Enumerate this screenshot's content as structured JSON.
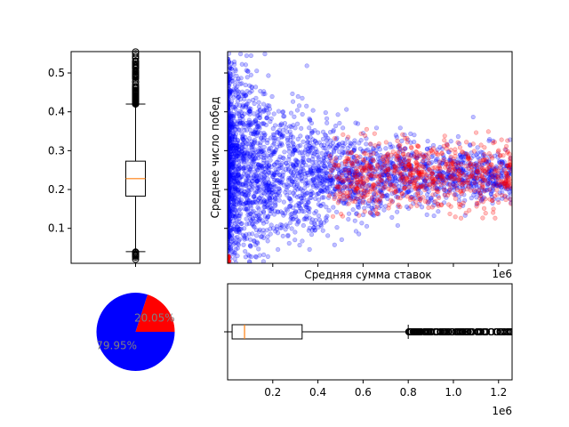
{
  "chart_data": [
    {
      "id": "left-boxplot",
      "type": "boxplot",
      "ylim": [
        0.01,
        0.555
      ],
      "yticks": [
        0.1,
        0.2,
        0.3,
        0.4,
        0.5
      ],
      "ytick_labels": [
        "0.1",
        "0.2",
        "0.3",
        "0.4",
        "0.5"
      ],
      "stats": {
        "whisker_low": 0.04,
        "q1": 0.183,
        "median": 0.228,
        "q3": 0.273,
        "whisker_high": 0.42
      },
      "outliers_high_range": [
        0.42,
        0.555
      ],
      "outliers_low_range": [
        0.02,
        0.04
      ],
      "colors": {
        "box": "#000000",
        "median": "#ff7f0e"
      }
    },
    {
      "id": "scatter",
      "type": "scatter",
      "xlabel": "Средняя сумма ставок",
      "ylabel": "Среднее число побед",
      "x_offset_text": "1e6",
      "xlim": [
        0,
        1260000
      ],
      "ylim": [
        0.01,
        0.555
      ],
      "series": [
        {
          "color": "#0000ff",
          "alpha": 0.25,
          "x_range": [
            0,
            1260000
          ],
          "y_range": [
            0.01,
            0.555
          ]
        },
        {
          "color": "#ff0000",
          "alpha": 0.25,
          "x_range": [
            450000,
            1260000
          ],
          "y_range": [
            0.1,
            0.36
          ]
        }
      ]
    },
    {
      "id": "pie",
      "type": "pie",
      "slices": [
        {
          "label": "20.05%",
          "value": 20.05,
          "color": "#ff0000"
        },
        {
          "label": "79.95%",
          "value": 79.95,
          "color": "#0000ff"
        }
      ],
      "label_color": "#808080"
    },
    {
      "id": "bottom-boxplot",
      "type": "boxplot",
      "orientation": "horizontal",
      "xlim": [
        0,
        1260000
      ],
      "xticks": [
        200000,
        400000,
        600000,
        800000,
        1000000,
        1200000
      ],
      "xtick_labels": [
        "0.2",
        "0.4",
        "0.6",
        "0.8",
        "1.0",
        "1.2"
      ],
      "x_offset_text": "1e6",
      "stats": {
        "whisker_low": 0,
        "q1": 20000,
        "median": 75000,
        "q3": 330000,
        "whisker_high": 800000
      },
      "outliers_range": [
        800000,
        1260000
      ],
      "colors": {
        "box": "#000000",
        "median": "#ff7f0e"
      }
    }
  ]
}
